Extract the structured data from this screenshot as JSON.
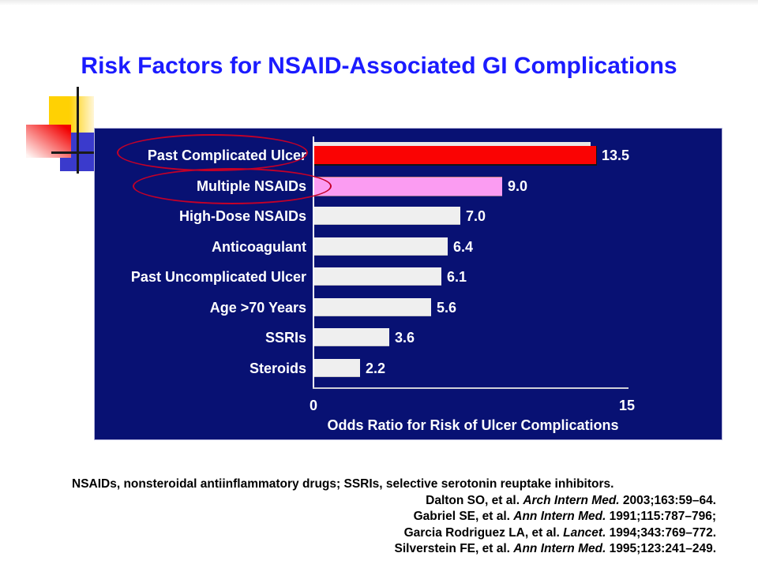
{
  "title": "Risk Factors for NSAID-Associated GI Complications",
  "chart_data": {
    "type": "bar",
    "orientation": "horizontal",
    "categories": [
      "Past Complicated Ulcer",
      "Multiple NSAIDs",
      "High-Dose NSAIDs",
      "Anticoagulant",
      "Past Uncomplicated Ulcer",
      "Age >70 Years",
      "SSRIs",
      "Steroids"
    ],
    "values": [
      13.5,
      9.0,
      7.0,
      6.4,
      6.1,
      5.6,
      3.6,
      2.2
    ],
    "value_labels": [
      "13.5",
      "9.0",
      "7.0",
      "6.4",
      "6.1",
      "5.6",
      "3.6",
      "2.2"
    ],
    "bar_colors": [
      "#fa0303",
      "#fb9cf2",
      "#efefef",
      "#efefef",
      "#efefef",
      "#efefef",
      "#efefef",
      "#efefef"
    ],
    "xlabel": "Odds Ratio for Risk of Ulcer Complications",
    "xlim": [
      0,
      15
    ],
    "xticks": [
      "0",
      "15"
    ],
    "grid": false,
    "legend": "none",
    "panel_background": "#081173",
    "highlighted_categories": [
      "Past Complicated Ulcer",
      "Multiple NSAIDs"
    ]
  },
  "footer": {
    "abbreviations": "NSAIDs, nonsteroidal antiinflammatory drugs; SSRIs, selective serotonin reuptake inhibitors.",
    "citations": [
      {
        "prefix": "Dalton SO, et al. ",
        "journal": "Arch Intern Med.",
        "suffix": " 2003;163:59–64."
      },
      {
        "prefix": "Gabriel SE, et al. ",
        "journal": "Ann Intern Med.",
        "suffix": " 1991;115:787–796;"
      },
      {
        "prefix": "Garcia Rodriguez LA, et al. ",
        "journal": "Lancet.",
        "suffix": " 1994;343:769–772."
      },
      {
        "prefix": "Silverstein FE, et al. ",
        "journal": "Ann Intern Med.",
        "suffix": " 1995;123:241–249."
      }
    ]
  },
  "colors": {
    "title_blue": "#1b1bff",
    "panel_navy": "#081173",
    "bar_red": "#fa0303",
    "bar_pink": "#fb9cf2",
    "bar_default": "#efefef",
    "ellipse_red": "#c40028",
    "deco_yellow": "#ffd103",
    "deco_blue": "#3a3acc",
    "deco_red": "#f20000"
  }
}
